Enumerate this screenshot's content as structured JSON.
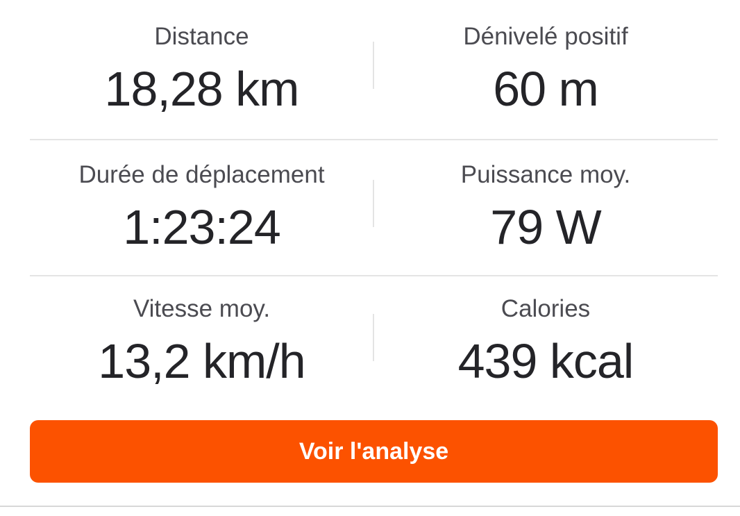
{
  "panel": {
    "kind": "activity-stats-summary",
    "language": "fr",
    "accent_color": "#fc5200",
    "background_color": "#ffffff",
    "label_color": "#4b4b51",
    "value_color": "#242428",
    "divider_color": "#e4e4e4"
  },
  "stats": [
    {
      "id": "distance",
      "label": "Distance",
      "value": "18,28 km"
    },
    {
      "id": "elevation-gain",
      "label": "Dénivelé positif",
      "value": "60 m"
    },
    {
      "id": "moving-time",
      "label": "Durée de déplacement",
      "value": "1:23:24"
    },
    {
      "id": "avg-power",
      "label": "Puissance moy.",
      "value": "79 W"
    },
    {
      "id": "avg-speed",
      "label": "Vitesse moy.",
      "value": "13,2 km/h"
    },
    {
      "id": "calories",
      "label": "Calories",
      "value": "439 kcal"
    }
  ],
  "cta": {
    "label": "Voir l'analyse"
  }
}
